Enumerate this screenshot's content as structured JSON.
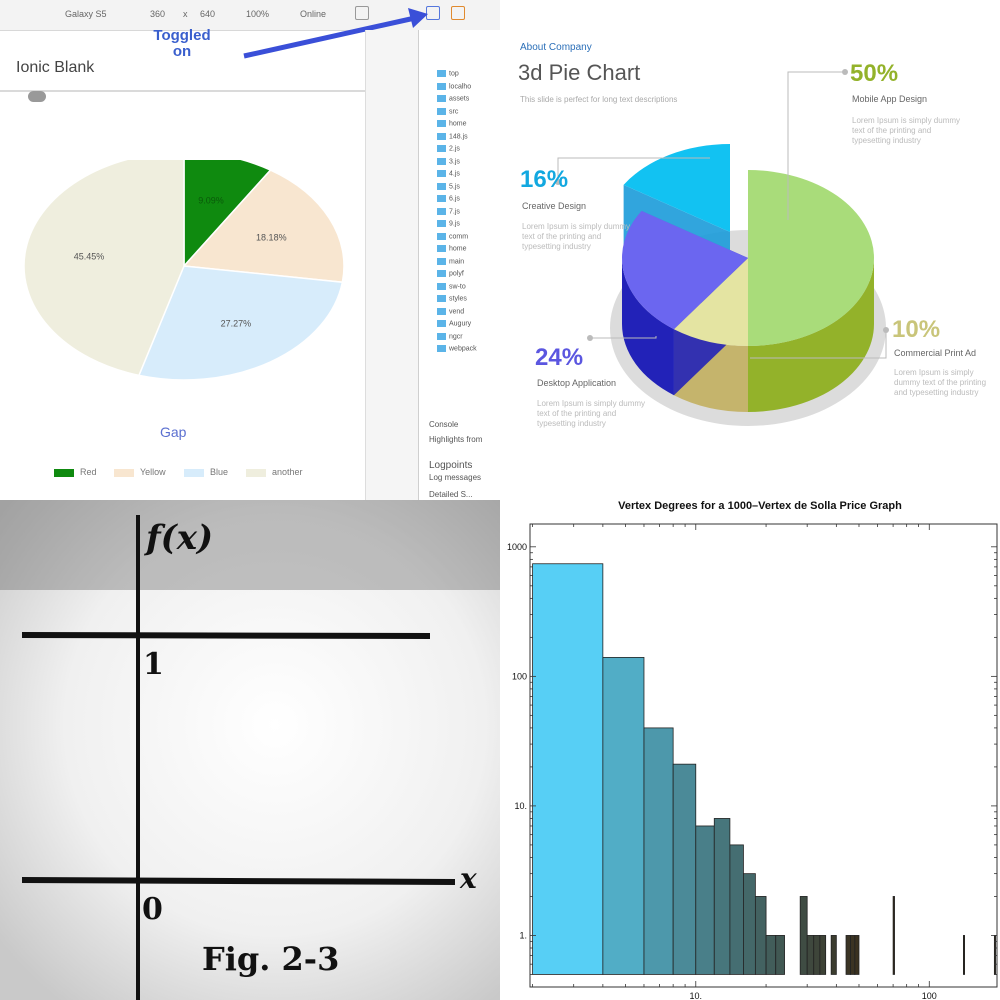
{
  "devtools": {
    "toolbar": {
      "device": "Galaxy S5",
      "width": "360",
      "x": "x",
      "height": "640",
      "zoom": "100%",
      "network": "Online"
    },
    "annotation": {
      "line1": "Toggled",
      "line2": "on"
    },
    "app_title": "Ionic Blank",
    "tree_items": [
      "top",
      "localho",
      "assets",
      "src",
      "home",
      "148.js",
      "2.js",
      "3.js",
      "4.js",
      "5.js",
      "6.js",
      "7.js",
      "9.js",
      "comm",
      "home",
      "main",
      "polyf",
      "sw-to",
      "styles",
      "vend",
      "Augury",
      "ngcr",
      "webpack"
    ],
    "console_tabs": [
      "Console",
      "Highlights from"
    ],
    "logpoints": {
      "title": "Logpoints",
      "sub": "Log messages"
    },
    "detailed": "Detailed S...",
    "pie_chart": {
      "type": "pie",
      "title": "Gap",
      "categories": [
        "Red",
        "Yellow",
        "Blue",
        "another"
      ],
      "values": [
        9.09,
        18.18,
        27.27,
        45.45
      ],
      "slice_labels": [
        "9.09%",
        "18.18%",
        "27.27%",
        "45.45%"
      ],
      "colors": [
        "#0f8a0f",
        "#f8e6d0",
        "#d7ecfb",
        "#efeede"
      ],
      "legend": "bottom"
    }
  },
  "pie3d": {
    "kicker": "About Company",
    "title": "3d Pie Chart",
    "subtitle": "This slide is perfect for long text descriptions",
    "chart_data": {
      "type": "pie",
      "categories": [
        "Mobile App Design",
        "Commercial Print Ad",
        "Desktop Application",
        "Creative Design"
      ],
      "values": [
        50,
        10,
        24,
        16
      ],
      "labels": [
        "50%",
        "10%",
        "24%",
        "16%"
      ],
      "colors": [
        "#a9dc7a",
        "#e4e4a2",
        "#6b66f0",
        "#12c2f2"
      ],
      "side_colors": [
        "#93b22a",
        "#c5b46c",
        "#2222b8",
        "#1b9bd9"
      ]
    },
    "lorem": "Lorem Ipsum is simply dummy text of the printing and typesetting industry"
  },
  "graph_fig": {
    "ylabel": "f(x)",
    "xlabel": "x",
    "tick_one": "1",
    "tick_zero": "0",
    "caption": "Fig. 2-3"
  },
  "histogram": {
    "chart_data": {
      "type": "bar",
      "title": "Vertex Degrees for a 1000–Vertex de Solla Price Graph",
      "x_scale": "log",
      "y_scale": "log",
      "xlim": [
        1.95,
        195
      ],
      "ylim": [
        0.4,
        1500
      ],
      "xticks": [
        10,
        100
      ],
      "xtick_labels": [
        "10.",
        "100"
      ],
      "yticks": [
        1,
        10,
        100,
        1000
      ],
      "ytick_labels": [
        "1.",
        "10.",
        "100",
        "1000"
      ],
      "bins": [
        {
          "x0": 2,
          "x1": 4,
          "count": 740
        },
        {
          "x0": 4,
          "x1": 6,
          "count": 140
        },
        {
          "x0": 6,
          "x1": 8,
          "count": 40
        },
        {
          "x0": 8,
          "x1": 10,
          "count": 21
        },
        {
          "x0": 10,
          "x1": 12,
          "count": 7
        },
        {
          "x0": 12,
          "x1": 14,
          "count": 8
        },
        {
          "x0": 14,
          "x1": 16,
          "count": 5
        },
        {
          "x0": 16,
          "x1": 18,
          "count": 3
        },
        {
          "x0": 18,
          "x1": 20,
          "count": 2
        },
        {
          "x0": 20,
          "x1": 22,
          "count": 1
        },
        {
          "x0": 22,
          "x1": 24,
          "count": 1
        },
        {
          "x0": 28,
          "x1": 30,
          "count": 2
        },
        {
          "x0": 30,
          "x1": 32,
          "count": 1
        },
        {
          "x0": 32,
          "x1": 34,
          "count": 1
        },
        {
          "x0": 34,
          "x1": 36,
          "count": 1
        },
        {
          "x0": 38,
          "x1": 40,
          "count": 1
        },
        {
          "x0": 44,
          "x1": 46,
          "count": 1
        },
        {
          "x0": 46,
          "x1": 48,
          "count": 1
        },
        {
          "x0": 48,
          "x1": 50,
          "count": 1
        },
        {
          "x0": 70,
          "x1": 71,
          "count": 2
        },
        {
          "x0": 140,
          "x1": 141,
          "count": 1
        },
        {
          "x0": 190,
          "x1": 191,
          "count": 1
        }
      ],
      "color_start": "#57cff5",
      "color_end": "#3a2f1c"
    }
  }
}
